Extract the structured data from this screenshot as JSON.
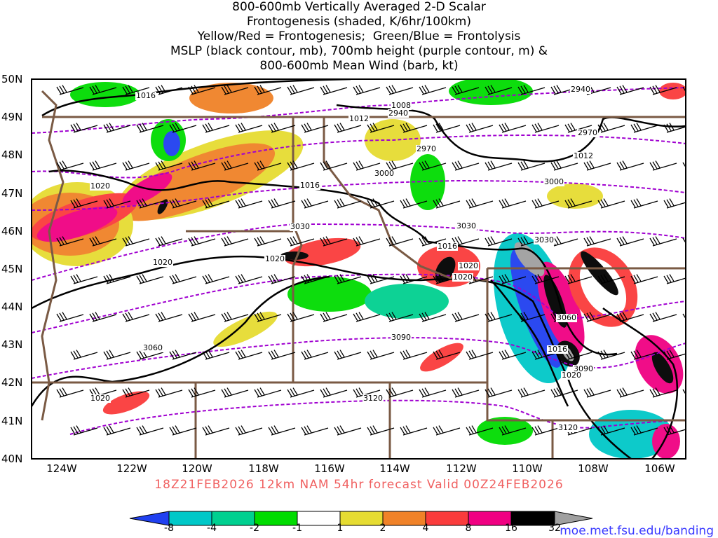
{
  "title": [
    "800-600mb Vertically Averaged 2-D Scalar",
    "Frontogenesis (shaded, K/6hr/100km)",
    "Yellow/Red = Frontogenesis;  Green/Blue = Frontolysis",
    "MSLP (black contour, mb), 700mb height (purple contour, m) &",
    "800-600mb Mean Wind (barb, kt)"
  ],
  "lat_labels": [
    "50N",
    "49N",
    "48N",
    "47N",
    "46N",
    "45N",
    "44N",
    "43N",
    "42N",
    "41N",
    "40N"
  ],
  "lon_labels": [
    "124W",
    "122W",
    "120W",
    "118W",
    "116W",
    "114W",
    "112W",
    "110W",
    "108W",
    "106W"
  ],
  "footer": "18Z21FEB2026 12km NAM 54hr forecast Valid 00Z24FEB2026",
  "colorbar": {
    "labels": [
      "-8",
      "-4",
      "-2",
      "-1",
      "1",
      "2",
      "4",
      "8",
      "16",
      "32"
    ],
    "colors": [
      "#2040f0",
      "#00c8c8",
      "#00d090",
      "#00dc00",
      "#ffffff",
      "#e6dc32",
      "#f08228",
      "#fa3c3c",
      "#f00082",
      "#000000",
      "#a0a0a0"
    ]
  },
  "url": "moe.met.fsu.edu/banding",
  "contour_labels": [
    "1016",
    "1008",
    "2940",
    "2940",
    "1012",
    "2970",
    "2970",
    "1012",
    "3000",
    "3000",
    "1016",
    "1020",
    "3030",
    "3030",
    "1016",
    "3030",
    "1020",
    "1020",
    "1020",
    "3060",
    "3060",
    "1016",
    "3090",
    "3090",
    "1020",
    "3120",
    "3120",
    "1020",
    "1020"
  ]
}
